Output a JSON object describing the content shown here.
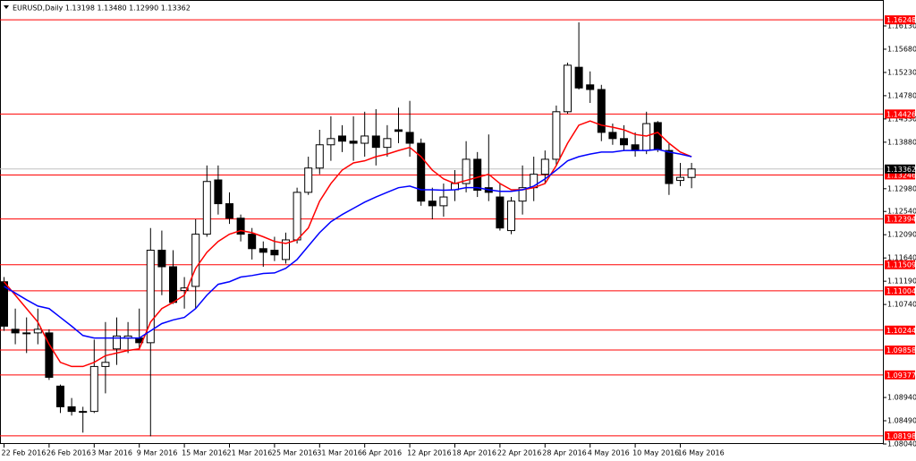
{
  "chart_data": {
    "type": "candlestick",
    "title": "EURUSD,Daily  1.13198 1.13480 1.12990 1.13362",
    "categories": [
      "22 Feb 2016",
      null,
      null,
      null,
      "26 Feb 2016",
      null,
      null,
      null,
      "3 Mar 2016",
      null,
      null,
      null,
      "9 Mar 2016",
      null,
      null,
      null,
      "15 Mar 2016",
      null,
      null,
      null,
      "21 Mar 2016",
      null,
      null,
      null,
      "25 Mar 2016",
      null,
      null,
      null,
      "31 Mar 2016",
      null,
      null,
      null,
      "6 Apr 2016",
      null,
      null,
      null,
      "12 Apr 2016",
      null,
      null,
      null,
      "18 Apr 2016",
      null,
      null,
      null,
      "22 Apr 2016",
      null,
      null,
      null,
      "28 Apr 2016",
      null,
      null,
      null,
      "4 May 2016",
      null,
      null,
      null,
      "10 May 2016",
      null,
      null,
      null,
      "16 May 2016",
      null
    ],
    "open": [
      1.1118,
      1.1026,
      1.1019,
      1.1019,
      1.1019,
      1.0916,
      1.0876,
      1.0867,
      1.0867,
      1.0954,
      1.0988,
      1.1009,
      1.1009,
      1.1,
      1.1179,
      1.1147,
      1.1101,
      1.1109,
      1.121,
      1.1315,
      1.1269,
      1.1241,
      1.121,
      1.1182,
      1.1179,
      1.1161,
      1.1199,
      1.1291,
      1.1338,
      1.1383,
      1.14,
      1.139,
      1.1386,
      1.14,
      1.1378,
      1.1412,
      1.1407,
      1.1386,
      1.1274,
      1.1265,
      1.1296,
      1.1308,
      1.1355,
      1.13,
      1.1282,
      1.1217,
      1.1274,
      1.13,
      1.1326,
      1.1355,
      1.1447,
      1.1533,
      1.1499,
      1.149,
      1.1407,
      1.1395,
      1.1383,
      1.1372,
      1.1426,
      1.1372,
      1.1314,
      1.13198
    ],
    "high": [
      1.1127,
      1.1066,
      1.1049,
      1.1066,
      1.1026,
      1.0919,
      1.0893,
      1.0876,
      1.1006,
      1.104,
      1.1049,
      1.104,
      1.1066,
      1.1222,
      1.1217,
      1.1179,
      1.1127,
      1.1239,
      1.1343,
      1.1343,
      1.1291,
      1.1248,
      1.1222,
      1.1196,
      1.1205,
      1.1213,
      1.13,
      1.136,
      1.1412,
      1.1438,
      1.1421,
      1.1438,
      1.1447,
      1.1452,
      1.1421,
      1.1455,
      1.1468,
      1.1395,
      1.13,
      1.1308,
      1.1334,
      1.139,
      1.1369,
      1.1403,
      1.1308,
      1.1282,
      1.1343,
      1.136,
      1.1372,
      1.1459,
      1.1542,
      1.162,
      1.1525,
      1.1499,
      1.1424,
      1.1421,
      1.1407,
      1.1447,
      1.1429,
      1.1386,
      1.1348,
      1.1348
    ],
    "low": [
      1.1023,
      1.0997,
      1.098,
      1.0997,
      1.0928,
      1.0864,
      1.0859,
      1.0826,
      1.0864,
      1.0902,
      1.0957,
      1.098,
      1.0988,
      1.0819,
      1.1092,
      1.1075,
      1.1066,
      1.1066,
      1.1205,
      1.1248,
      1.123,
      1.1196,
      1.1161,
      1.1147,
      1.1158,
      1.1153,
      1.1192,
      1.1286,
      1.1326,
      1.1352,
      1.1369,
      1.1352,
      1.136,
      1.1343,
      1.136,
      1.1386,
      1.136,
      1.1265,
      1.1239,
      1.1244,
      1.1274,
      1.1291,
      1.1282,
      1.1274,
      1.1217,
      1.121,
      1.1248,
      1.1274,
      1.1308,
      1.1343,
      1.1443,
      1.149,
      1.1464,
      1.139,
      1.1383,
      1.1372,
      1.136,
      1.1365,
      1.1369,
      1.1286,
      1.1303,
      1.1299
    ],
    "close": [
      1.1032,
      1.1019,
      1.1018,
      1.1026,
      1.0933,
      1.0876,
      1.0867,
      1.0866,
      1.0954,
      1.0962,
      1.1013,
      1.1013,
      1.1,
      1.1179,
      1.1147,
      1.1078,
      1.1106,
      1.121,
      1.1312,
      1.1269,
      1.1241,
      1.121,
      1.1182,
      1.1175,
      1.117,
      1.1199,
      1.1291,
      1.1338,
      1.1383,
      1.1395,
      1.139,
      1.1386,
      1.14,
      1.1378,
      1.1395,
      1.1409,
      1.1386,
      1.1274,
      1.1265,
      1.1282,
      1.1308,
      1.1355,
      1.1295,
      1.1291,
      1.1222,
      1.1274,
      1.13,
      1.1326,
      1.1355,
      1.1447,
      1.1537,
      1.1493,
      1.149,
      1.1407,
      1.1395,
      1.1383,
      1.1372,
      1.1424,
      1.1374,
      1.1308,
      1.132,
      1.13362
    ],
    "bull_color": "#ffffff",
    "bear_color": "#000000",
    "moving_averages": [
      {
        "color": "#ff0000",
        "values": [
          1.1118,
          1.1092,
          1.1066,
          1.104,
          1.0997,
          1.0962,
          1.0954,
          1.0954,
          1.0962,
          1.0975,
          1.098,
          1.0985,
          1.0988,
          1.104,
          1.1066,
          1.1078,
          1.1092,
          1.1144,
          1.1175,
          1.1196,
          1.121,
          1.1217,
          1.1213,
          1.1205,
          1.1196,
          1.1192,
          1.1199,
          1.1222,
          1.1274,
          1.1308,
          1.1334,
          1.1348,
          1.1352,
          1.136,
          1.1365,
          1.1372,
          1.1378,
          1.136,
          1.1334,
          1.1317,
          1.1308,
          1.1314,
          1.132,
          1.1326,
          1.1308,
          1.1296,
          1.1296,
          1.13,
          1.1308,
          1.1343,
          1.1386,
          1.1421,
          1.1429,
          1.1421,
          1.1417,
          1.1412,
          1.1403,
          1.14,
          1.1407,
          1.1386,
          1.1369,
          1.136
        ]
      },
      {
        "color": "#0000ff",
        "values": [
          1.1109,
          1.1096,
          1.1083,
          1.1071,
          1.1066,
          1.1049,
          1.1032,
          1.1014,
          1.1009,
          1.1009,
          1.1009,
          1.1009,
          1.1009,
          1.1023,
          1.1037,
          1.1044,
          1.1049,
          1.1066,
          1.1092,
          1.1113,
          1.1118,
          1.1127,
          1.113,
          1.1134,
          1.1135,
          1.1144,
          1.1161,
          1.1187,
          1.1213,
          1.1234,
          1.1248,
          1.126,
          1.1272,
          1.1282,
          1.1291,
          1.13,
          1.1303,
          1.1296,
          1.1296,
          1.1295,
          1.1296,
          1.13,
          1.13,
          1.1296,
          1.1293,
          1.1293,
          1.1296,
          1.1303,
          1.1317,
          1.1334,
          1.1352,
          1.136,
          1.1365,
          1.1369,
          1.1369,
          1.1372,
          1.1372,
          1.1372,
          1.1374,
          1.1369,
          1.1365,
          1.136
        ]
      }
    ],
    "levels": [
      1.16248,
      1.14426,
      1.13246,
      1.12394,
      1.11509,
      1.11004,
      1.10244,
      1.09858,
      1.09377,
      1.08198
    ],
    "level_color": "#ff0000",
    "last_price": 1.13362,
    "ylim": [
      1.0804,
      1.1658
    ],
    "yticks": [
      {
        "value": 1.1613,
        "label": "1.16130"
      },
      {
        "value": 1.1568,
        "label": "1.15680"
      },
      {
        "value": 1.1523,
        "label": "1.15230"
      },
      {
        "value": 1.1478,
        "label": "1.14780"
      },
      {
        "value": 1.1433,
        "label": "1.14330"
      },
      {
        "value": 1.1388,
        "label": "1.13880"
      },
      {
        "value": 1.1298,
        "label": "1.12980"
      },
      {
        "value": 1.1254,
        "label": "1.12540"
      },
      {
        "value": 1.1209,
        "label": "1.12090"
      },
      {
        "value": 1.1164,
        "label": "1.11640"
      },
      {
        "value": 1.1119,
        "label": "1.11190"
      },
      {
        "value": 1.1074,
        "label": "1.10740"
      },
      {
        "value": 1.0894,
        "label": "1.08940"
      },
      {
        "value": 1.0849,
        "label": "1.08490"
      },
      {
        "value": 1.0804,
        "label": "1.08040"
      }
    ]
  }
}
